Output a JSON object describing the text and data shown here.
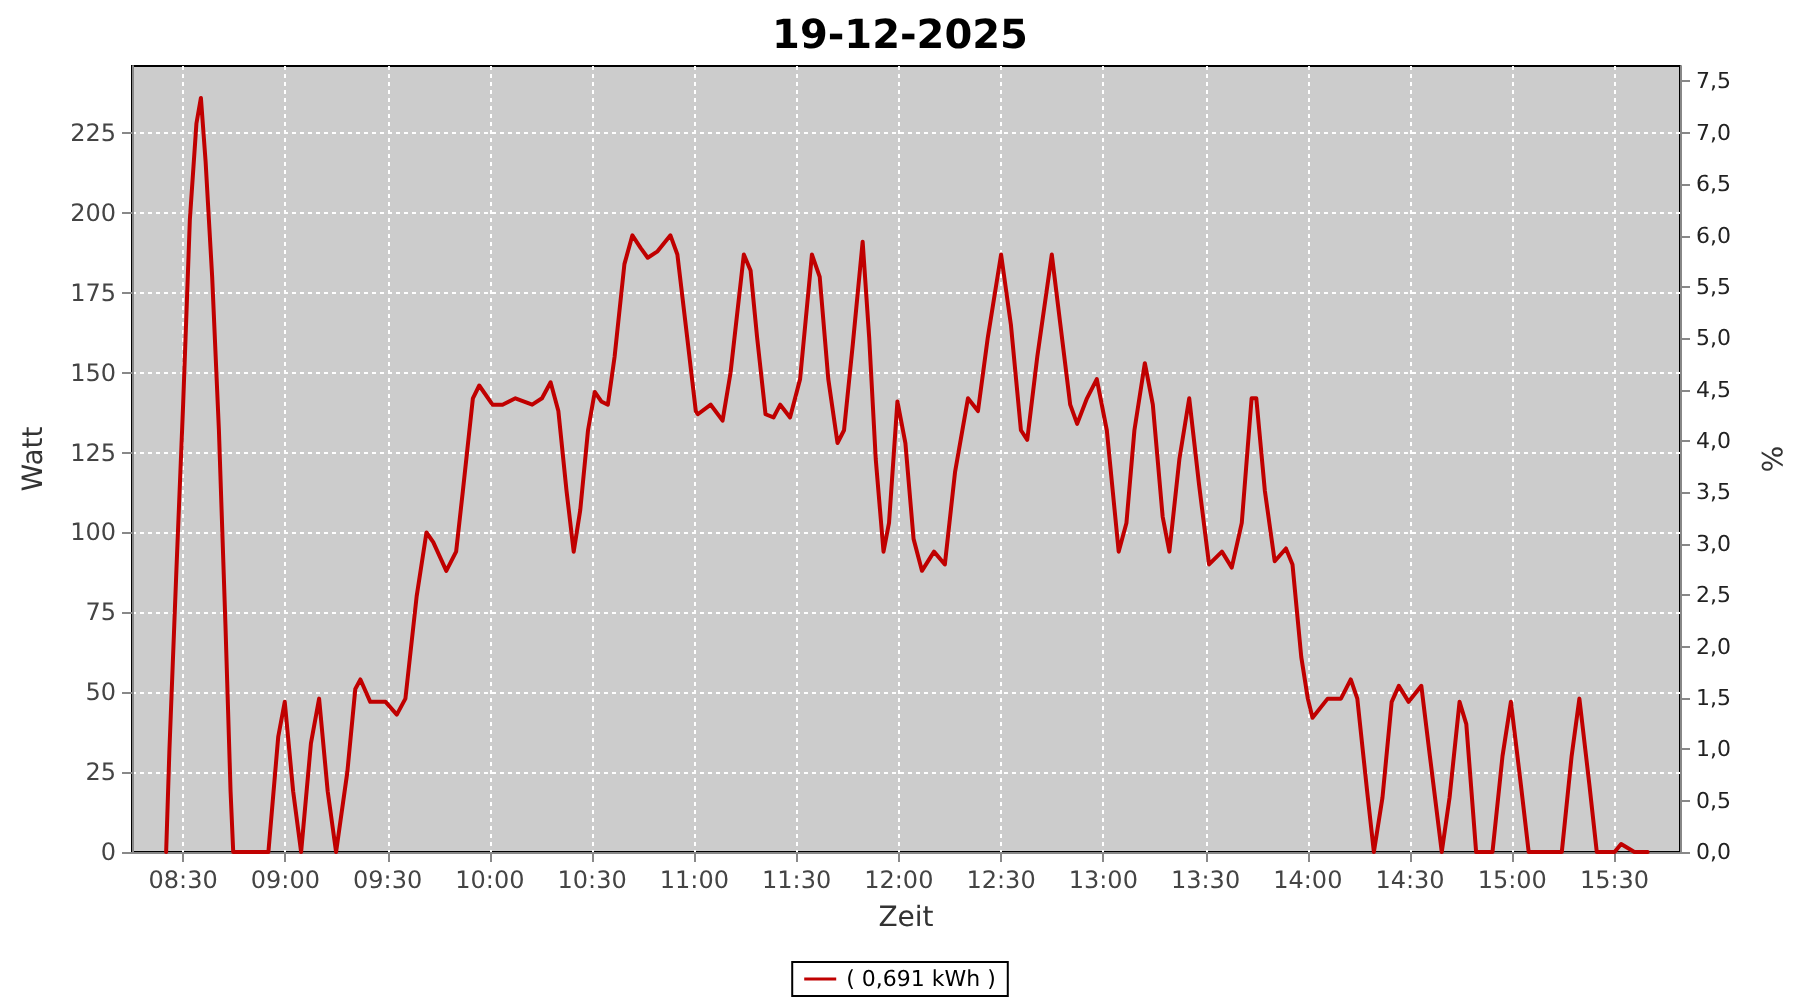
{
  "chart_data": {
    "type": "line",
    "title": "19-12-2025",
    "xlabel": "Zeit",
    "ylabel": "Watt",
    "y2label": "%",
    "xlim": [
      8.25,
      15.82
    ],
    "xticks": [
      {
        "value": 8.5,
        "label": "08:30"
      },
      {
        "value": 9,
        "label": "09:00"
      },
      {
        "value": 9.5,
        "label": "09:30"
      },
      {
        "value": 10,
        "label": "10:00"
      },
      {
        "value": 10.5,
        "label": "10:30"
      },
      {
        "value": 11,
        "label": "11:00"
      },
      {
        "value": 11.5,
        "label": "11:30"
      },
      {
        "value": 12,
        "label": "12:00"
      },
      {
        "value": 12.5,
        "label": "12:30"
      },
      {
        "value": 13,
        "label": "13:00"
      },
      {
        "value": 13.5,
        "label": "13:30"
      },
      {
        "value": 14,
        "label": "14:00"
      },
      {
        "value": 14.5,
        "label": "14:30"
      },
      {
        "value": 15,
        "label": "15:00"
      },
      {
        "value": 15.5,
        "label": "15:30"
      }
    ],
    "ylim": [
      0,
      246
    ],
    "yticks": [
      0,
      25,
      50,
      75,
      100,
      125,
      150,
      175,
      200,
      225
    ],
    "y2lim": [
      0,
      7.65
    ],
    "y2ticks": [
      {
        "value": 0,
        "label": "0,0"
      },
      {
        "value": 0.5,
        "label": "0,5"
      },
      {
        "value": 1,
        "label": "1,0"
      },
      {
        "value": 1.5,
        "label": "1,5"
      },
      {
        "value": 2,
        "label": "2,0"
      },
      {
        "value": 2.5,
        "label": "2,5"
      },
      {
        "value": 3,
        "label": "3,0"
      },
      {
        "value": 3.5,
        "label": "3,5"
      },
      {
        "value": 4,
        "label": "4,0"
      },
      {
        "value": 4.5,
        "label": "4,5"
      },
      {
        "value": 5,
        "label": "5,0"
      },
      {
        "value": 5.5,
        "label": "5,5"
      },
      {
        "value": 6,
        "label": "6,0"
      },
      {
        "value": 6.5,
        "label": "6,5"
      },
      {
        "value": 7,
        "label": "7,0"
      },
      {
        "value": 7.5,
        "label": "7,5"
      }
    ],
    "grid": true,
    "legend": "bottom",
    "marker": "none",
    "line_style": "solid",
    "series": [
      {
        "name": "( 0,691 kWh )",
        "color": "#c00000",
        "x": [
          8.417,
          8.433,
          8.467,
          8.5,
          8.533,
          8.565,
          8.587,
          8.61,
          8.642,
          8.675,
          8.707,
          8.732,
          8.745,
          8.917,
          8.965,
          8.997,
          9.038,
          9.077,
          9.125,
          9.165,
          9.207,
          9.248,
          9.303,
          9.342,
          9.367,
          9.415,
          9.49,
          9.545,
          9.587,
          9.642,
          9.69,
          9.723,
          9.787,
          9.835,
          9.868,
          9.917,
          9.948,
          10.013,
          10.062,
          10.125,
          10.207,
          10.255,
          10.297,
          10.335,
          10.375,
          10.41,
          10.442,
          10.48,
          10.513,
          10.545,
          10.577,
          10.61,
          10.658,
          10.697,
          10.738,
          10.772,
          10.82,
          10.883,
          10.917,
          10.965,
          11.007,
          11.017,
          11.08,
          11.138,
          11.177,
          11.242,
          11.275,
          11.307,
          11.348,
          11.387,
          11.42,
          11.468,
          11.517,
          11.575,
          11.613,
          11.655,
          11.7,
          11.732,
          11.775,
          11.823,
          11.855,
          11.887,
          11.925,
          11.952,
          11.993,
          12.032,
          12.072,
          12.113,
          12.172,
          12.225,
          12.275,
          12.338,
          12.387,
          12.435,
          12.5,
          12.548,
          12.597,
          12.628,
          12.677,
          12.748,
          12.79,
          12.838,
          12.872,
          12.92,
          12.968,
          13.017,
          13.075,
          13.113,
          13.152,
          13.203,
          13.242,
          13.29,
          13.323,
          13.372,
          13.42,
          13.468,
          13.517,
          13.58,
          13.628,
          13.677,
          13.725,
          13.748,
          13.79,
          13.838,
          13.893,
          13.925,
          13.968,
          14,
          14.023,
          14.097,
          14.162,
          14.21,
          14.242,
          14.29,
          14.323,
          14.365,
          14.41,
          14.445,
          14.493,
          14.555,
          14.597,
          14.655,
          14.693,
          14.742,
          14.775,
          14.823,
          14.903,
          14.952,
          14.993,
          15.042,
          15.08,
          15.242,
          15.29,
          15.328,
          15.377,
          15.413,
          15.5,
          15.532,
          15.597,
          15.662
        ],
        "values": [
          0,
          32,
          88,
          140,
          198,
          228,
          236,
          216,
          180,
          132,
          71,
          19,
          0,
          0,
          36,
          47,
          19,
          0,
          34,
          48,
          19,
          0,
          25,
          51,
          54,
          47,
          47,
          43,
          48,
          80,
          100,
          97,
          88,
          94,
          113,
          142,
          146,
          140,
          140,
          142,
          140,
          142,
          147,
          138,
          113,
          94,
          107,
          132,
          144,
          141,
          140,
          155,
          184,
          193,
          189,
          186,
          188,
          193,
          187,
          161,
          138,
          137,
          140,
          135,
          150,
          187,
          182,
          161,
          137,
          136,
          140,
          136,
          148,
          187,
          180,
          148,
          128,
          132,
          159,
          191,
          161,
          123,
          94,
          103,
          141,
          128,
          98,
          88,
          94,
          90,
          119,
          142,
          138,
          161,
          187,
          165,
          132,
          129,
          155,
          187,
          165,
          140,
          134,
          142,
          148,
          132,
          94,
          103,
          132,
          153,
          140,
          105,
          94,
          123,
          142,
          115,
          90,
          94,
          89,
          103,
          142,
          142,
          113,
          91,
          95,
          90,
          61,
          48,
          42,
          48,
          48,
          54,
          48,
          19,
          0,
          17,
          47,
          52,
          47,
          52,
          30,
          0,
          17,
          47,
          40,
          0,
          0,
          30,
          47,
          21,
          0,
          0,
          30,
          48,
          21,
          0,
          0,
          2.5,
          0,
          0
        ]
      }
    ]
  }
}
